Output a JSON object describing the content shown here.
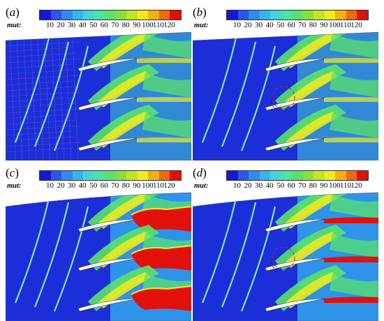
{
  "colorbar": {
    "variable": "mut:",
    "ticks": [
      "10",
      "20",
      "30",
      "40",
      "50",
      "60",
      "70",
      "80",
      "90",
      "100",
      "110",
      "120"
    ],
    "colors": [
      "#1717d8",
      "#2b55ee",
      "#2f8af3",
      "#35b5ef",
      "#43d6d6",
      "#4de2a6",
      "#5ae26c",
      "#86e23b",
      "#bfe626",
      "#f2ec1c",
      "#f3b013",
      "#ef6a0d",
      "#e2100a"
    ]
  },
  "panels": [
    {
      "id": "a",
      "label": "a",
      "state": "noisy-mesh",
      "bg": "#1c2ed8"
    },
    {
      "id": "b",
      "label": "b",
      "state": "moderate",
      "bg": "#1c2ed8",
      "has_circle": true
    },
    {
      "id": "c",
      "label": "c",
      "state": "high-wake",
      "bg": "#1c2ed8"
    },
    {
      "id": "d",
      "label": "d",
      "state": "moderate-wake",
      "bg": "#1c2ed8",
      "has_circle": true
    }
  ],
  "colors": {
    "background": "#1c2ed8",
    "low": "#2b55ee",
    "mid": "#35b5ef",
    "cyan": "#43d6d6",
    "green": "#5ae26c",
    "yellow": "#f2ec1c",
    "red": "#e2100a",
    "annotation": "#c81f2a"
  }
}
